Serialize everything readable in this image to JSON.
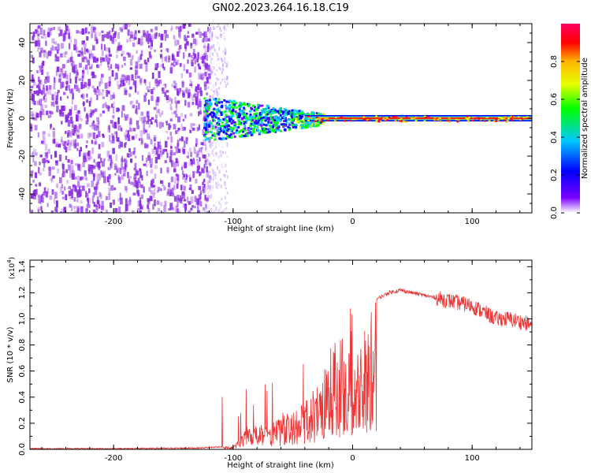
{
  "title": "GN02.2023.264.16.18.C19",
  "colors": {
    "frame": "#000000",
    "snr_line": "#ee3333",
    "scatter_point": "#8a2be2",
    "colorbar": [
      "#ffffff",
      "#7a00ff",
      "#0000ff",
      "#00c8ff",
      "#00ff00",
      "#e6ff00",
      "#ffb400",
      "#ff0000",
      "#ff0060"
    ]
  },
  "chart_data": [
    {
      "type": "heatmap",
      "name": "spectrogram",
      "xlabel": "Height of straight line (km)",
      "ylabel": "Frequency (Hz)",
      "xlim": [
        -270,
        150
      ],
      "ylim": [
        -50,
        50
      ],
      "xticks": [
        -200,
        -100,
        0,
        100
      ],
      "yticks": [
        -40,
        -20,
        0,
        20,
        40
      ],
      "colorbar": {
        "label": "Normalized spectral amplitude",
        "range": [
          0.0,
          1.0
        ],
        "ticks": [
          0.0,
          0.2,
          0.4,
          0.6,
          0.8
        ]
      },
      "regions": [
        {
          "x_range": [
            -270,
            -110
          ],
          "freq_range": [
            -50,
            50
          ],
          "amplitude": "~0.1 (noise)"
        },
        {
          "x_range": [
            -125,
            -40
          ],
          "freq_range": [
            -10,
            10
          ],
          "amplitude": "0.2–0.5"
        },
        {
          "x_range": [
            -40,
            150
          ],
          "freq_range": [
            -2,
            2
          ],
          "amplitude": "0.8–1.0"
        }
      ]
    },
    {
      "type": "line",
      "name": "snr",
      "xlabel": "Height of straight line (km)",
      "ylabel": "SNR (10 * v/v)",
      "yscale_label": "(x10",
      "yscale_exp": "4",
      "yscale_close": ")",
      "xlim": [
        -270,
        150
      ],
      "ylim": [
        0.0,
        1.45
      ],
      "xticks": [
        -200,
        -100,
        0,
        100
      ],
      "yticks": [
        "0.0",
        "0.2",
        "0.4",
        "0.6",
        "0.8",
        "1.0",
        "1.2",
        "1.4"
      ],
      "series": [
        {
          "x": [
            -270,
            -200,
            -130,
            -110,
            -100,
            -95,
            -90,
            -80,
            -70,
            -60,
            -50,
            -40,
            -30,
            -25,
            -20,
            -15,
            -10,
            -5,
            0,
            5,
            10,
            15,
            20,
            30,
            40,
            50,
            60,
            70,
            80,
            90,
            100,
            110,
            120,
            130,
            140,
            150
          ],
          "y": [
            0.005,
            0.005,
            0.01,
            0.02,
            0.03,
            0.08,
            0.15,
            0.18,
            0.2,
            0.25,
            0.3,
            0.38,
            0.5,
            0.62,
            0.75,
            0.85,
            0.9,
            0.8,
            0.7,
            0.75,
            0.95,
            1.05,
            1.15,
            1.2,
            1.22,
            1.2,
            1.18,
            1.16,
            1.14,
            1.12,
            1.1,
            1.05,
            1.0,
            1.0,
            0.98,
            0.95
          ]
        }
      ]
    }
  ]
}
